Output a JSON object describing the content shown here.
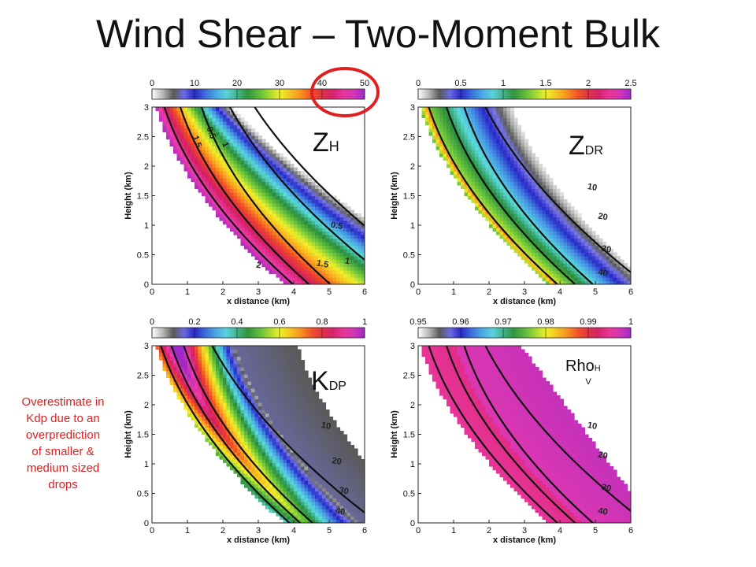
{
  "slide": {
    "title": "Wind Shear – Two-Moment Bulk",
    "callout_lines": [
      "Overestimate in",
      "Kdp due to an",
      "overprediction",
      "of smaller &",
      "medium sized",
      "drops"
    ],
    "callout_color": "#e02020",
    "highlight_color": "#e02020"
  },
  "chart_data": [
    {
      "type": "heatmap",
      "label_main": "Z",
      "label_sub": "H",
      "colorbar": {
        "range": [
          0,
          50
        ],
        "ticks": [
          0,
          10,
          20,
          30,
          40,
          50
        ],
        "highlighted_ticks": [
          40,
          50
        ]
      },
      "xlabel": "x distance (km)",
      "ylabel": "Height (km)",
      "xlim": [
        0,
        6
      ],
      "ylim": [
        0,
        3
      ],
      "xticks": [
        "0",
        "1",
        "2",
        "3",
        "4",
        "5",
        "6"
      ],
      "yticks": [
        "0",
        "0.5",
        "1",
        "1.5",
        "2",
        "2.5",
        "3"
      ],
      "contour_labels": [
        "0.5",
        "1",
        "1.5",
        "0.5",
        "1",
        "1.5",
        "2"
      ]
    },
    {
      "type": "heatmap",
      "label_main": "Z",
      "label_sub": "DR",
      "colorbar": {
        "range": [
          0,
          2.5
        ],
        "ticks": [
          0,
          0.5,
          1,
          1.5,
          2,
          2.5
        ]
      },
      "xlabel": "x distance (km)",
      "ylabel": "Height (km)",
      "xlim": [
        0,
        6
      ],
      "ylim": [
        0,
        3
      ],
      "xticks": [
        "0",
        "1",
        "2",
        "3",
        "4",
        "5",
        "6"
      ],
      "yticks": [
        "0",
        "0.5",
        "1",
        "1.5",
        "2",
        "2.5",
        "3"
      ],
      "contour_labels": [
        "10",
        "20",
        "30",
        "40"
      ]
    },
    {
      "type": "heatmap",
      "label_main": "K",
      "label_sub": "DP",
      "colorbar": {
        "range": [
          0,
          1
        ],
        "ticks": [
          0,
          0.2,
          0.4,
          0.6,
          0.8,
          1
        ]
      },
      "xlabel": "x distance (km)",
      "ylabel": "Height (km)",
      "xlim": [
        0,
        6
      ],
      "ylim": [
        0,
        3
      ],
      "xticks": [
        "0",
        "1",
        "2",
        "3",
        "4",
        "5",
        "6"
      ],
      "yticks": [
        "0",
        "0.5",
        "1",
        "1.5",
        "2",
        "2.5",
        "3"
      ],
      "contour_labels": [
        "10",
        "20",
        "30",
        "40"
      ]
    },
    {
      "type": "heatmap",
      "label_main": "Rho",
      "label_sub": "H",
      "label_sub2": "V",
      "colorbar": {
        "range": [
          0.95,
          1
        ],
        "ticks": [
          0.95,
          0.96,
          0.97,
          0.98,
          0.99,
          1
        ]
      },
      "xlabel": "x distance (km)",
      "ylabel": "Height (km)",
      "xlim": [
        0,
        6
      ],
      "ylim": [
        0,
        3
      ],
      "xticks": [
        "0",
        "1",
        "2",
        "3",
        "4",
        "5",
        "6"
      ],
      "yticks": [
        "0",
        "0.5",
        "1",
        "1.5",
        "2",
        "2.5",
        "3"
      ],
      "contour_labels": [
        "10",
        "20",
        "30",
        "40"
      ]
    }
  ]
}
